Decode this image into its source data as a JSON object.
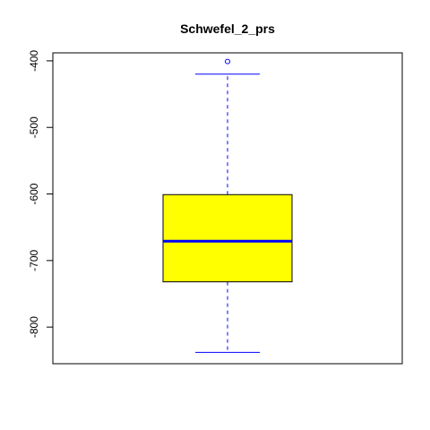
{
  "chart_data": {
    "type": "boxplot",
    "title": "Schwefel_2_prs",
    "xlabel": "",
    "ylabel": "",
    "ylim": [
      -855,
      -388
    ],
    "y_ticks": [
      -400,
      -500,
      -600,
      -700,
      -800
    ],
    "y_tick_labels": [
      "-400",
      "-500",
      "-600",
      "-700",
      "-800"
    ],
    "box": {
      "whisker_low": -838,
      "q1": -732,
      "median": -671,
      "q3": -601,
      "whisker_high": -420,
      "outliers": [
        -401
      ]
    },
    "colors": {
      "box_fill": "#ffff00",
      "box_border": "#000000",
      "median": "#0000ff",
      "whisker": "#0000ff",
      "outlier": "#0000ff"
    }
  }
}
